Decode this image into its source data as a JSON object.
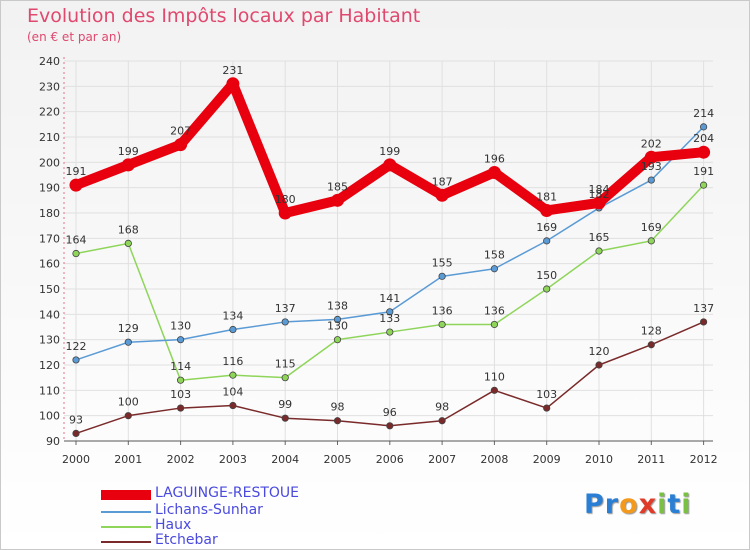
{
  "header": {
    "title": "Evolution des Impôts locaux par Habitant",
    "subtitle": "(en € et par an)"
  },
  "logo": {
    "text": "Proxiti",
    "letters": [
      "P",
      "r",
      "o",
      "x",
      "i",
      "t",
      "i"
    ],
    "colors": [
      "#2a7fd4",
      "#2a7fd4",
      "#f39a1c",
      "#e03a2a",
      "#7ac143",
      "#2a7fd4",
      "#7ac143"
    ]
  },
  "chart_data": {
    "type": "line",
    "x": [
      "2000",
      "2001",
      "2002",
      "2003",
      "2004",
      "2005",
      "2006",
      "2007",
      "2008",
      "2009",
      "2010",
      "2011",
      "2012"
    ],
    "ylim": [
      90,
      240
    ],
    "yticks": [
      90,
      100,
      110,
      120,
      130,
      140,
      150,
      160,
      170,
      180,
      190,
      200,
      210,
      220,
      230,
      240
    ],
    "grid": true,
    "legend_position": "bottom-left",
    "series": [
      {
        "name": "LAGUINGE-RESTOUE",
        "color": "#e8000e",
        "values": [
          191,
          199,
          207,
          231,
          180,
          185,
          199,
          187,
          196,
          181,
          184,
          202,
          204
        ],
        "labels": [
          "191",
          "199",
          "207",
          "231",
          "180",
          "185",
          "199",
          "187",
          "196",
          "181",
          "184",
          "202",
          "204"
        ]
      },
      {
        "name": "Lichans-Sunhar",
        "color": "#5b9bd5",
        "values": [
          122,
          129,
          130,
          134,
          137,
          138,
          141,
          155,
          158,
          169,
          182,
          193,
          214
        ],
        "labels": [
          "122",
          "129",
          "130",
          "134",
          "137",
          "138",
          "141",
          "155",
          "158",
          "169",
          "182",
          "193",
          "214"
        ]
      },
      {
        "name": "Haux",
        "color": "#8ed55a",
        "values": [
          164,
          168,
          114,
          116,
          115,
          130,
          133,
          136,
          136,
          150,
          165,
          169,
          191
        ],
        "labels": [
          "164",
          "168",
          "114",
          "116",
          "115",
          "130",
          "133",
          "136",
          "136",
          "150",
          "165",
          "169",
          "191"
        ]
      },
      {
        "name": "Etchebar",
        "color": "#7a2a2a",
        "values": [
          93,
          100,
          103,
          104,
          99,
          98,
          96,
          98,
          110,
          103,
          120,
          128,
          137
        ],
        "labels": [
          "93",
          "100",
          "103",
          "104",
          "99",
          "98",
          "96",
          "98",
          "110",
          "103",
          "120",
          "128",
          "137"
        ]
      }
    ]
  }
}
